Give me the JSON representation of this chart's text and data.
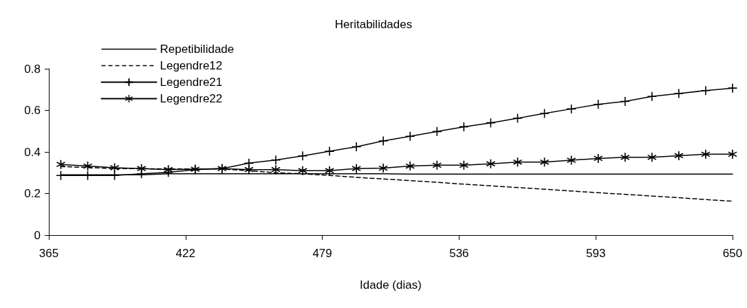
{
  "chart_data": {
    "type": "line",
    "title": "Heritabilidades",
    "xlabel": "Idade (dias)",
    "x": [
      370,
      381.2,
      392.4,
      403.6,
      414.8,
      426,
      437.2,
      448.4,
      459.6,
      470.8,
      482,
      493.2,
      504.4,
      515.6,
      526.8,
      538,
      549.2,
      560.4,
      571.6,
      582.8,
      594,
      605.2,
      616.4,
      627.6,
      638.8,
      650
    ],
    "xlim": [
      365,
      650
    ],
    "xticks": [
      365,
      422,
      479,
      536,
      593,
      650
    ],
    "ylim": [
      0,
      0.8
    ],
    "yticks": [
      0,
      0.2,
      0.4,
      0.6,
      0.8
    ],
    "grid": false,
    "legend": "top left",
    "series": [
      {
        "name": "Repetibilidade",
        "color": "#000000",
        "marker": "none",
        "line_style": "solid",
        "values": [
          0.29,
          0.29,
          0.29,
          0.29,
          0.295,
          0.295,
          0.295,
          0.295,
          0.295,
          0.295,
          0.295,
          0.295,
          0.295,
          0.293,
          0.293,
          0.293,
          0.293,
          0.293,
          0.293,
          0.293,
          0.293,
          0.293,
          0.293,
          0.293,
          0.293,
          0.293
        ]
      },
      {
        "name": "Legendre12",
        "color": "#000000",
        "marker": "none",
        "line_style": "dashed",
        "values": [
          0.33,
          0.325,
          0.32,
          0.32,
          0.318,
          0.318,
          0.318,
          0.31,
          0.3,
          0.295,
          0.287,
          0.278,
          0.27,
          0.262,
          0.254,
          0.245,
          0.237,
          0.229,
          0.221,
          0.212,
          0.204,
          0.196,
          0.188,
          0.18,
          0.171,
          0.163
        ]
      },
      {
        "name": "Legendre21",
        "color": "#000000",
        "marker": "cross",
        "line_style": "solid",
        "values": [
          0.287,
          0.287,
          0.287,
          0.295,
          0.302,
          0.315,
          0.32,
          0.346,
          0.361,
          0.381,
          0.403,
          0.425,
          0.453,
          0.475,
          0.498,
          0.521,
          0.54,
          0.562,
          0.585,
          0.607,
          0.629,
          0.643,
          0.667,
          0.681,
          0.695,
          0.707
        ]
      },
      {
        "name": "Legendre22",
        "color": "#000000",
        "marker": "star",
        "line_style": "solid",
        "values": [
          0.34,
          0.332,
          0.324,
          0.32,
          0.315,
          0.317,
          0.32,
          0.315,
          0.315,
          0.31,
          0.31,
          0.32,
          0.322,
          0.332,
          0.336,
          0.336,
          0.343,
          0.351,
          0.351,
          0.36,
          0.369,
          0.374,
          0.374,
          0.382,
          0.389,
          0.389
        ]
      }
    ]
  }
}
